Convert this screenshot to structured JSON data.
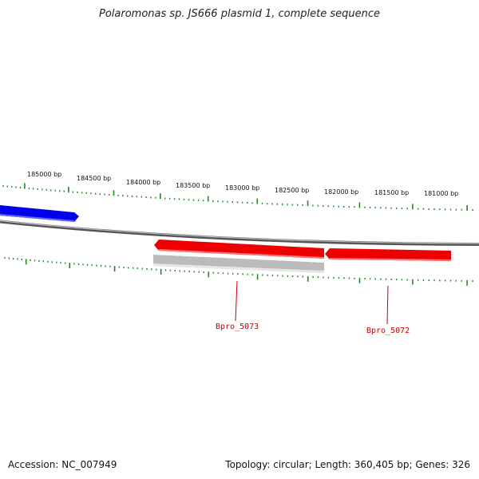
{
  "title": "Polaromonas sp. JS666 plasmid 1, complete sequence",
  "footer": {
    "accession": "Accession: NC_007949",
    "summary": "Topology: circular; Length: 360,405 bp; Genes: 326"
  },
  "ruler": {
    "labels": [
      "185000 bp",
      "184500 bp",
      "184000 bp",
      "183500 bp",
      "183000 bp",
      "182500 bp",
      "182000 bp",
      "181500 bp",
      "181000 bp"
    ]
  },
  "genes": [
    {
      "label": "Bpro_5073"
    },
    {
      "label": "Bpro_5072"
    }
  ],
  "colors": {
    "forward_gene": "#0000ee",
    "reverse_gene": "#ee0000",
    "other_feature": "#bbbbbb",
    "ticks": "#228822",
    "backbone": "#888888",
    "gene_label": "#cc0000"
  }
}
